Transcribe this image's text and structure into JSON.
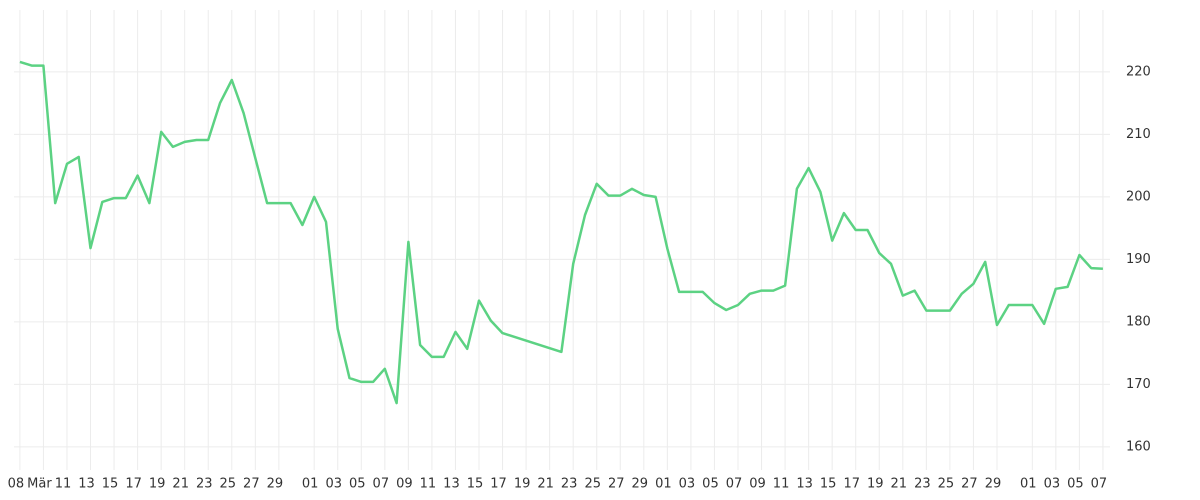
{
  "chart_data": {
    "type": "line",
    "x": [
      0,
      1,
      2,
      3,
      4,
      5,
      6,
      7,
      8,
      9,
      10,
      11,
      12,
      13,
      14,
      15,
      16,
      17,
      18,
      19,
      20,
      21,
      22,
      23,
      24,
      25,
      26,
      27,
      28,
      29,
      30,
      31,
      32,
      33,
      34,
      35,
      36,
      37,
      38,
      39,
      40,
      41,
      46,
      47,
      48,
      49,
      50,
      51,
      52,
      53,
      54,
      55,
      56,
      57,
      58,
      59,
      60,
      61,
      62,
      63,
      64,
      65,
      66,
      67,
      68,
      69,
      70,
      71,
      72,
      73,
      74,
      75,
      76,
      77,
      78,
      79,
      80,
      81,
      82,
      83,
      84,
      85,
      86,
      87,
      88,
      89,
      90,
      91,
      92
    ],
    "series": [
      {
        "color": "#5cd283",
        "values": [
          221.6,
          221.0,
          221.0,
          199.0,
          205.3,
          206.4,
          191.8,
          199.2,
          199.8,
          199.8,
          203.4,
          199.0,
          210.4,
          208.0,
          208.8,
          209.1,
          209.1,
          215.0,
          218.7,
          213.4,
          206.2,
          199.0,
          199.0,
          199.0,
          195.5,
          200.0,
          196.0,
          178.9,
          171.0,
          170.4,
          170.4,
          172.5,
          167.0,
          192.8,
          176.3,
          174.4,
          174.4,
          178.4,
          175.7,
          183.4,
          180.2,
          178.2,
          175.2,
          189.3,
          197.1,
          202.1,
          200.2,
          200.2,
          201.3,
          200.3,
          200.0,
          191.7,
          184.8,
          184.8,
          184.8,
          183.0,
          181.9,
          182.7,
          184.5,
          185.0,
          185.0,
          185.8,
          201.3,
          204.6,
          200.8,
          193.0,
          197.4,
          194.7,
          194.7,
          191.0,
          189.3,
          184.2,
          185.0,
          181.8,
          181.8,
          181.8,
          184.5,
          186.1,
          189.6,
          179.5,
          182.7,
          182.7,
          182.7,
          179.7,
          185.3,
          185.6,
          190.7,
          188.6,
          188.5
        ]
      }
    ],
    "xlim": [
      -0.5,
      92.6
    ],
    "xticks": [
      {
        "value": 0,
        "label": "08"
      },
      {
        "value": 2,
        "label": "Mär"
      },
      {
        "value": 4,
        "label": "11"
      },
      {
        "value": 6,
        "label": "13"
      },
      {
        "value": 8,
        "label": "15"
      },
      {
        "value": 10,
        "label": "17"
      },
      {
        "value": 12,
        "label": "19"
      },
      {
        "value": 14,
        "label": "21"
      },
      {
        "value": 16,
        "label": "23"
      },
      {
        "value": 18,
        "label": "25"
      },
      {
        "value": 20,
        "label": "27"
      },
      {
        "value": 22,
        "label": "29"
      },
      {
        "value": 25,
        "label": "01"
      },
      {
        "value": 27,
        "label": "03"
      },
      {
        "value": 29,
        "label": "05"
      },
      {
        "value": 31,
        "label": "07"
      },
      {
        "value": 33,
        "label": "09"
      },
      {
        "value": 35,
        "label": "11"
      },
      {
        "value": 37,
        "label": "13"
      },
      {
        "value": 39,
        "label": "15"
      },
      {
        "value": 41,
        "label": "17"
      },
      {
        "value": 43,
        "label": "19"
      },
      {
        "value": 45,
        "label": "21"
      },
      {
        "value": 47,
        "label": "23"
      },
      {
        "value": 49,
        "label": "25"
      },
      {
        "value": 51,
        "label": "27"
      },
      {
        "value": 53,
        "label": "29"
      },
      {
        "value": 55,
        "label": "01"
      },
      {
        "value": 57,
        "label": "03"
      },
      {
        "value": 59,
        "label": "05"
      },
      {
        "value": 61,
        "label": "07"
      },
      {
        "value": 63,
        "label": "09"
      },
      {
        "value": 65,
        "label": "11"
      },
      {
        "value": 67,
        "label": "13"
      },
      {
        "value": 69,
        "label": "15"
      },
      {
        "value": 71,
        "label": "17"
      },
      {
        "value": 73,
        "label": "19"
      },
      {
        "value": 75,
        "label": "21"
      },
      {
        "value": 77,
        "label": "23"
      },
      {
        "value": 79,
        "label": "25"
      },
      {
        "value": 81,
        "label": "27"
      },
      {
        "value": 83,
        "label": "29"
      },
      {
        "value": 86,
        "label": "01"
      },
      {
        "value": 88,
        "label": "03"
      },
      {
        "value": 90,
        "label": "05"
      },
      {
        "value": 92,
        "label": "07"
      }
    ],
    "ylim": [
      156.3,
      229.9
    ],
    "yticks": [
      160,
      170,
      180,
      190,
      200,
      210,
      220
    ],
    "grid": true
  }
}
